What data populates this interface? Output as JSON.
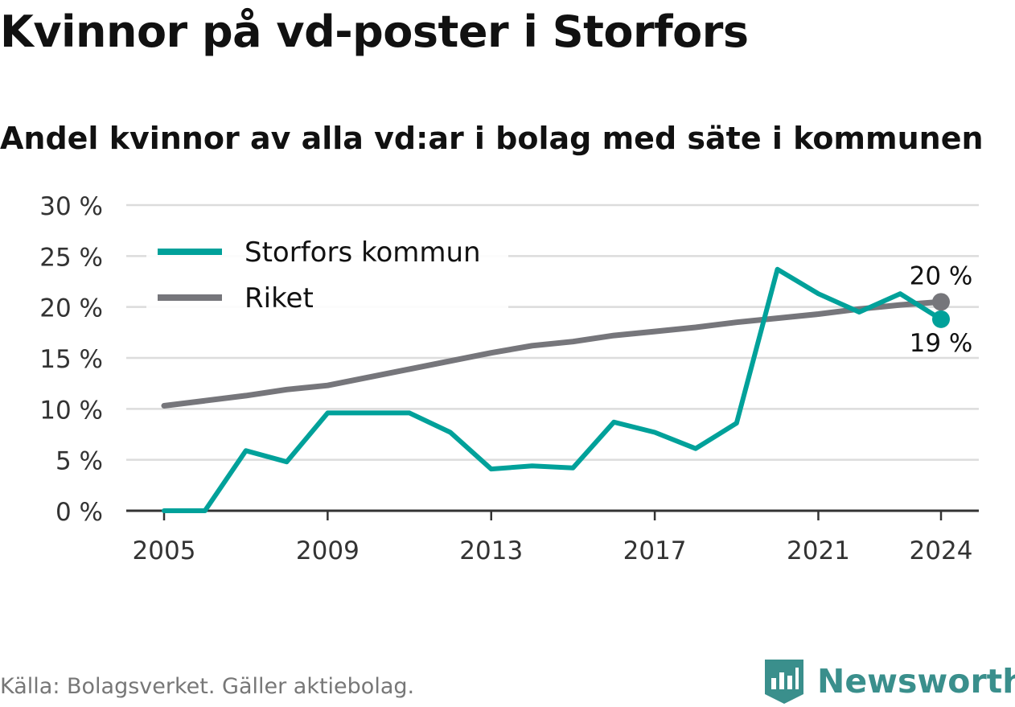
{
  "chart_data": {
    "type": "line",
    "title": "Kvinnor på vd-poster i Storfors",
    "subtitle": "Andel kvinnor av alla vd:ar i bolag med säte i kommunen",
    "x": [
      2005,
      2006,
      2007,
      2008,
      2009,
      2010,
      2011,
      2012,
      2013,
      2014,
      2015,
      2016,
      2017,
      2018,
      2019,
      2020,
      2021,
      2022,
      2023,
      2024
    ],
    "x_ticks": [
      "2005",
      "2009",
      "2013",
      "2017",
      "2021",
      "2024"
    ],
    "y_ticks": [
      "0 %",
      "5 %",
      "10 %",
      "15 %",
      "20 %",
      "25 %",
      "30 %"
    ],
    "ylim": [
      0,
      30
    ],
    "grid": true,
    "legend_position": "top-left",
    "series": [
      {
        "name": "Storfors kommun",
        "color": "#00a19a",
        "values": [
          0,
          0,
          5.9,
          4.8,
          9.6,
          9.6,
          9.6,
          7.7,
          4.1,
          4.4,
          4.2,
          8.7,
          7.7,
          6.1,
          8.6,
          23.7,
          21.3,
          19.5,
          21.3,
          18.8
        ],
        "end_label": "19 %"
      },
      {
        "name": "Riket",
        "color": "#76767b",
        "values": [
          10.3,
          10.8,
          11.3,
          11.9,
          12.3,
          13.1,
          13.9,
          14.7,
          15.5,
          16.2,
          16.6,
          17.2,
          17.6,
          18.0,
          18.5,
          18.9,
          19.3,
          19.8,
          20.2,
          20.5
        ],
        "end_label": "20 %"
      }
    ]
  },
  "source": "Källa: Bolagsverket. Gäller aktiebolag.",
  "brand": "Newsworthy"
}
